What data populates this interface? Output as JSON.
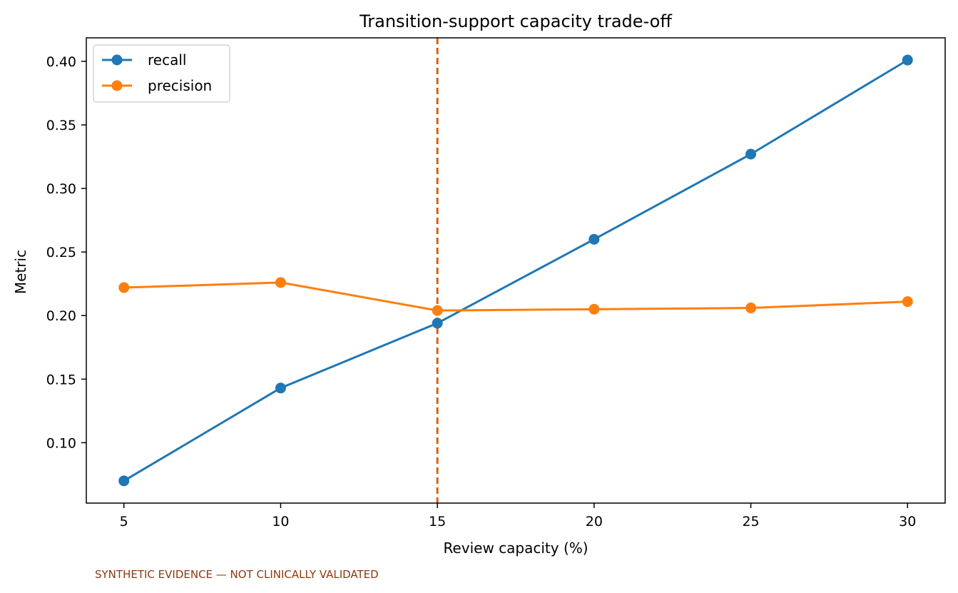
{
  "chart_data": {
    "type": "line",
    "title": "Transition-support capacity trade-off",
    "xlabel": "Review capacity (%)",
    "ylabel": "Metric",
    "x": [
      5,
      10,
      15,
      20,
      25,
      30
    ],
    "xlim": [
      3.8,
      31.2
    ],
    "ylim": [
      0.0525,
      0.4185
    ],
    "xticks": [
      5,
      10,
      15,
      20,
      25,
      30
    ],
    "yticks": [
      0.1,
      0.15,
      0.2,
      0.25,
      0.3,
      0.35,
      0.4
    ],
    "ytick_labels": [
      "0.10",
      "0.15",
      "0.20",
      "0.25",
      "0.30",
      "0.35",
      "0.40"
    ],
    "series": [
      {
        "name": "recall",
        "color": "#1f77b4",
        "values": [
          0.07,
          0.143,
          0.194,
          0.26,
          0.327,
          0.401
        ]
      },
      {
        "name": "precision",
        "color": "#ff7f0e",
        "values": [
          0.222,
          0.226,
          0.204,
          0.205,
          0.206,
          0.211
        ]
      }
    ],
    "vline": {
      "x": 15,
      "color": "#d95f0e",
      "style": "dashed"
    },
    "legend": "top-left",
    "grid": false
  },
  "footnote": "SYNTHETIC EVIDENCE — NOT CLINICALLY VALIDATED"
}
